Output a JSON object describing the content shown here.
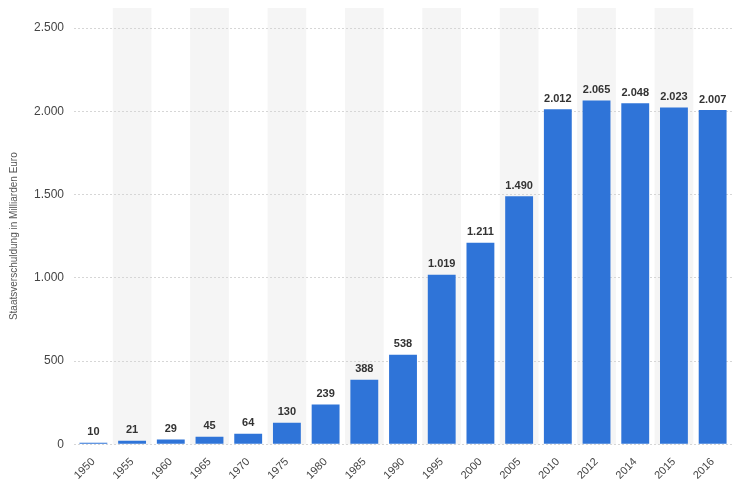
{
  "chart_data": {
    "type": "bar",
    "y_label": "Staatsverschuldung in Milliarden Euro",
    "categories": [
      "1950",
      "1955",
      "1960",
      "1965",
      "1970",
      "1975",
      "1980",
      "1985",
      "1990",
      "1995",
      "2000",
      "2005",
      "2010",
      "2012",
      "2014",
      "2015",
      "2016"
    ],
    "values": [
      10,
      21,
      29,
      45,
      64,
      130,
      239,
      388,
      538,
      1019,
      1211,
      1490,
      2012,
      2065,
      2048,
      2023,
      2007
    ],
    "value_labels": [
      "10",
      "21",
      "29",
      "45",
      "64",
      "130",
      "239",
      "388",
      "538",
      "1.019",
      "1.211",
      "1.490",
      "2.012",
      "2.065",
      "2.048",
      "2.023",
      "2.007"
    ],
    "color": "#2f74d8",
    "ylim": [
      0,
      2500
    ],
    "yticks": [
      0,
      500,
      {
        "value": 1000,
        "label": "1.000"
      },
      {
        "value": 1500,
        "label": "1.500"
      },
      {
        "value": 2000,
        "label": "2.000"
      },
      {
        "value": 2500,
        "label": "2.500"
      }
    ],
    "grid": true,
    "data_labels": true
  }
}
